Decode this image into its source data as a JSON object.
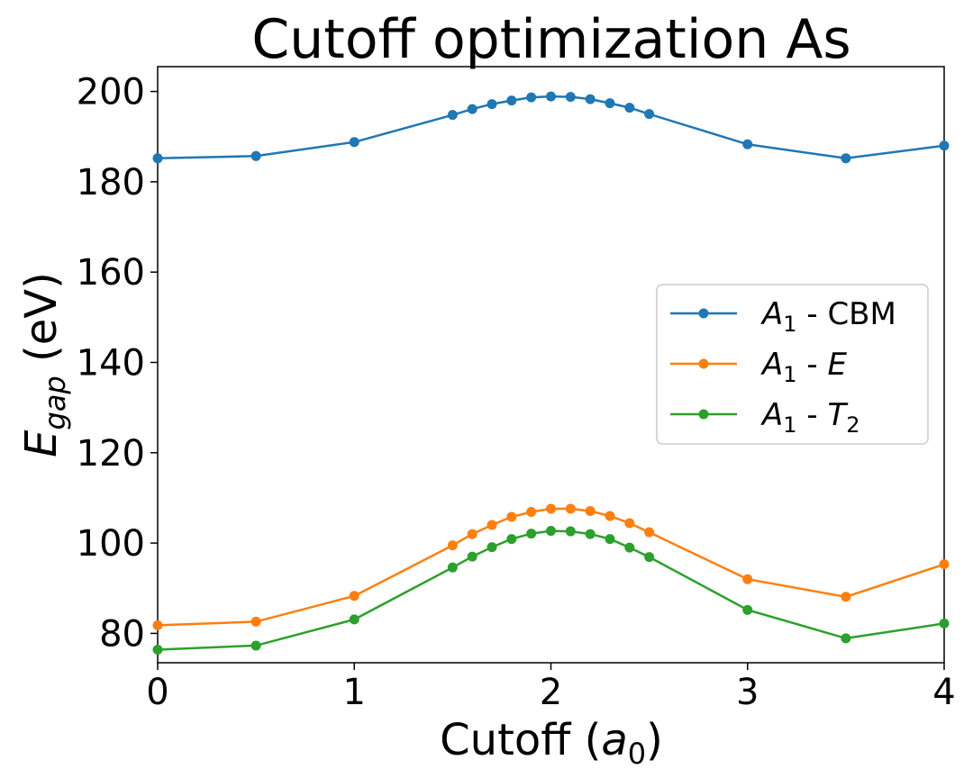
{
  "chart_data": {
    "type": "line",
    "title": "Cutoff optimization As",
    "xlabel": {
      "base": "Cutoff (",
      "var": "a",
      "sub": "0",
      "end": ")"
    },
    "ylabel": {
      "var": "E",
      "sub": "gap",
      "unit": " (eV)"
    },
    "xlim": [
      0,
      4
    ],
    "ylim": [
      73.5,
      205.5
    ],
    "xticks": [
      0,
      1,
      2,
      3,
      4
    ],
    "yticks": [
      80,
      100,
      120,
      140,
      160,
      180,
      200
    ],
    "x": [
      0,
      0.5,
      1,
      1.5,
      1.6,
      1.7,
      1.8,
      1.9,
      2.0,
      2.1,
      2.2,
      2.3,
      2.4,
      2.5,
      3,
      3.5,
      4
    ],
    "series": [
      {
        "name": "A1 - CBM",
        "legend": {
          "var": "A",
          "sub": "1",
          "sep": " - ",
          "suffix": "CBM",
          "suffix_italic": false,
          "suffix_sub": ""
        },
        "color": "#1f77b4",
        "values": [
          185.2,
          185.7,
          188.8,
          194.8,
          196.1,
          197.2,
          198.0,
          198.7,
          198.9,
          198.8,
          198.3,
          197.4,
          196.4,
          195.0,
          188.3,
          185.2,
          188.0
        ]
      },
      {
        "name": "A1 - E",
        "legend": {
          "var": "A",
          "sub": "1",
          "sep": " - ",
          "suffix": "E",
          "suffix_italic": true,
          "suffix_sub": ""
        },
        "color": "#ff7f0e",
        "values": [
          81.8,
          82.6,
          88.3,
          99.5,
          102.0,
          104.0,
          105.8,
          106.9,
          107.6,
          107.6,
          107.1,
          106.0,
          104.4,
          102.4,
          92.0,
          88.1,
          95.3
        ]
      },
      {
        "name": "A1 - T2",
        "legend": {
          "var": "A",
          "sub": "1",
          "sep": " - ",
          "suffix": "T",
          "suffix_italic": true,
          "suffix_sub": "2"
        },
        "color": "#2ca02c",
        "values": [
          76.4,
          77.3,
          83.1,
          94.6,
          97.0,
          99.1,
          100.9,
          102.1,
          102.7,
          102.6,
          102.0,
          100.9,
          99.0,
          96.9,
          85.2,
          78.9,
          82.2
        ]
      }
    ],
    "legend_position": "center-right"
  }
}
